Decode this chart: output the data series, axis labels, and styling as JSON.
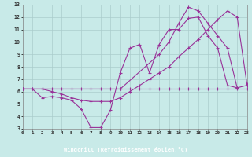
{
  "bg_color": "#c8eae8",
  "plot_bg_color": "#c8eae8",
  "line_color": "#993399",
  "grid_color": "#aacccc",
  "xlabel": "Windchill (Refroidissement éolien,°C)",
  "xlabel_bg": "#660066",
  "xlabel_fg": "#ffffff",
  "xlim": [
    0,
    23
  ],
  "ylim": [
    3,
    13
  ],
  "xticks": [
    0,
    1,
    2,
    3,
    4,
    5,
    6,
    7,
    8,
    9,
    10,
    11,
    12,
    13,
    14,
    15,
    16,
    17,
    18,
    19,
    20,
    21,
    22,
    23
  ],
  "yticks": [
    3,
    4,
    5,
    6,
    7,
    8,
    9,
    10,
    11,
    12,
    13
  ],
  "line1_x": [
    0,
    1,
    2,
    3,
    4,
    5,
    6,
    7,
    8,
    9,
    10,
    11,
    12,
    13,
    14,
    15,
    16,
    17,
    18,
    19,
    20,
    21,
    22,
    23
  ],
  "line1_y": [
    6.2,
    6.2,
    6.2,
    6.2,
    6.2,
    6.2,
    6.2,
    6.2,
    6.2,
    6.2,
    6.2,
    6.2,
    6.2,
    6.2,
    6.2,
    6.2,
    6.2,
    6.2,
    6.2,
    6.2,
    6.2,
    6.2,
    6.2,
    6.2
  ],
  "line2_x": [
    0,
    1,
    2,
    3,
    4,
    5,
    6,
    7,
    8,
    9,
    10,
    11,
    12,
    13,
    14,
    15,
    16,
    17,
    18,
    19,
    20,
    21,
    22
  ],
  "line2_y": [
    6.2,
    6.2,
    5.5,
    5.6,
    5.5,
    5.3,
    4.6,
    3.1,
    3.1,
    4.5,
    7.5,
    9.5,
    9.8,
    7.5,
    9.8,
    11.0,
    11.0,
    11.9,
    12.0,
    10.5,
    9.5,
    6.5,
    6.3
  ],
  "line3_x": [
    0,
    2,
    3,
    4,
    5,
    6,
    7,
    8,
    9,
    10,
    11,
    12,
    13,
    14,
    15,
    16,
    17,
    18,
    19,
    20,
    21,
    22,
    23
  ],
  "line3_y": [
    6.2,
    6.2,
    6.0,
    5.8,
    5.5,
    5.3,
    5.2,
    5.2,
    5.2,
    5.5,
    6.0,
    6.5,
    7.0,
    7.5,
    8.0,
    8.8,
    9.5,
    10.2,
    11.0,
    11.8,
    12.5,
    12.0,
    6.6
  ],
  "line4_x": [
    0,
    2,
    10,
    14,
    15,
    16,
    17,
    18,
    19,
    20,
    21,
    22,
    23
  ],
  "line4_y": [
    6.2,
    6.2,
    6.2,
    9.0,
    10.0,
    11.5,
    12.8,
    12.5,
    11.5,
    10.5,
    9.5,
    6.3,
    6.5
  ]
}
